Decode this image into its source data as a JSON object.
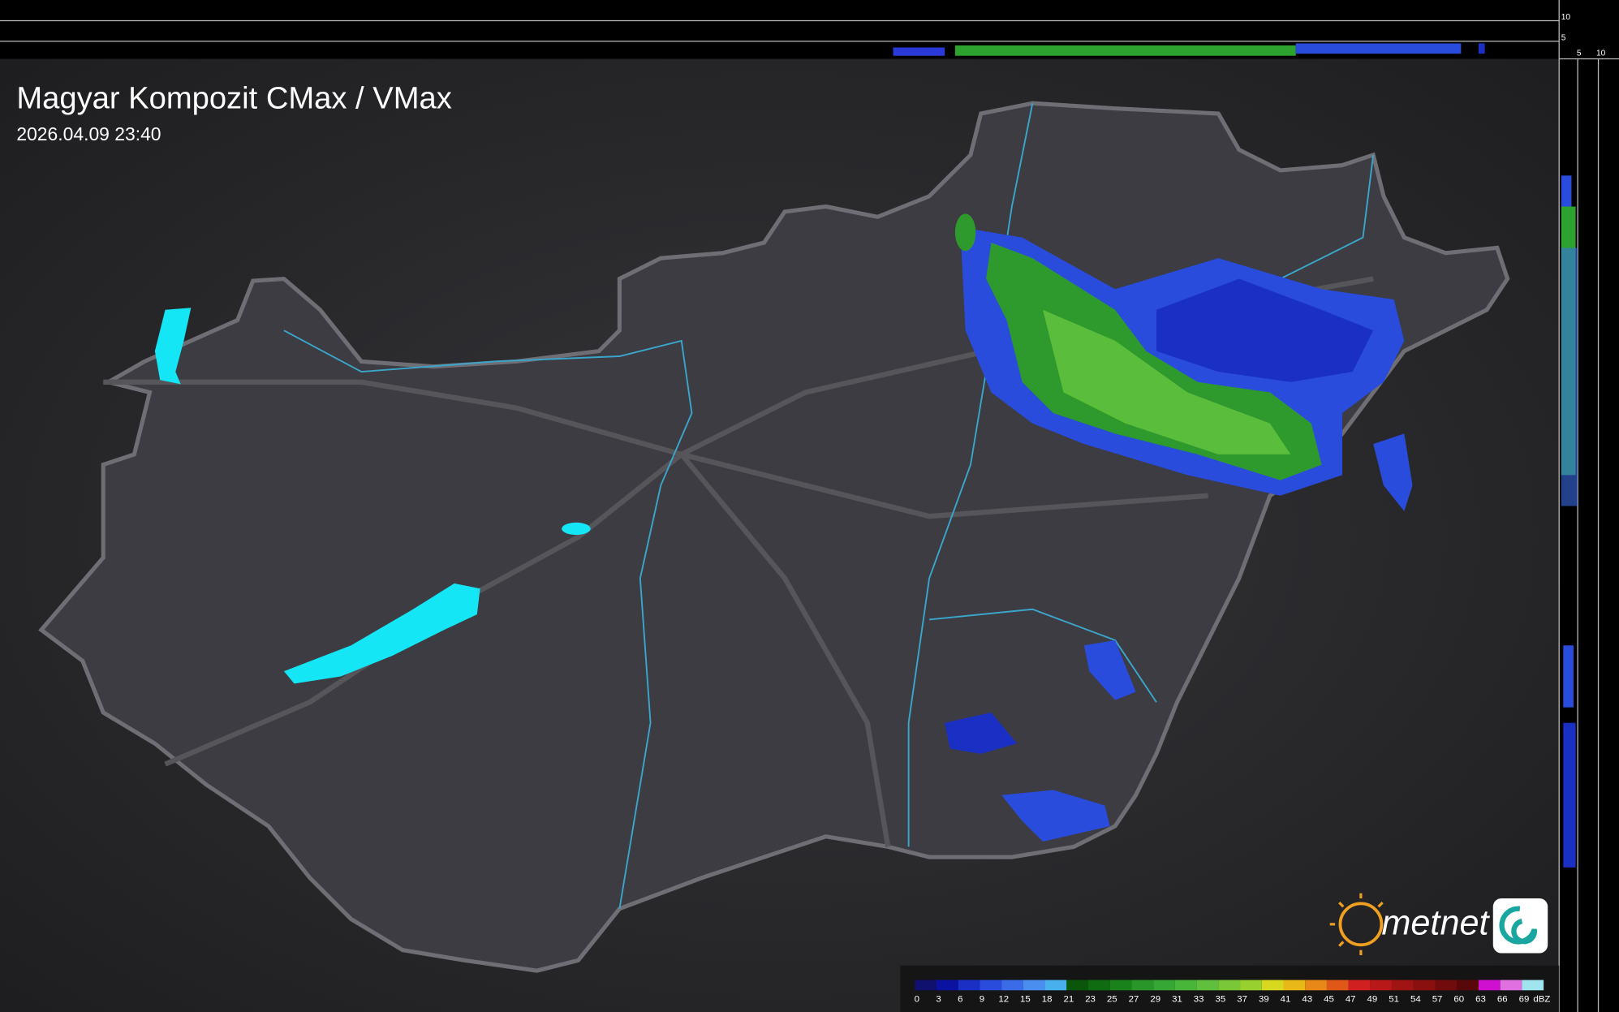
{
  "header": {
    "title": "Magyar Kompozit CMax / VMax",
    "timestamp": "2026.04.09 23:40"
  },
  "legend": {
    "ticks": [
      0,
      3,
      6,
      9,
      12,
      15,
      18,
      21,
      23,
      25,
      27,
      29,
      31,
      33,
      35,
      37,
      39,
      41,
      43,
      45,
      47,
      49,
      51,
      54,
      57,
      60,
      63,
      66,
      69
    ],
    "unit": "dBZ",
    "colors": [
      "#10106e",
      "#0c12a0",
      "#1a30c4",
      "#2a4cdc",
      "#3a6ce8",
      "#4a8ef0",
      "#48b0ec",
      "#0a560a",
      "#106c10",
      "#1a821a",
      "#289628",
      "#36a634",
      "#48b638",
      "#60c03e",
      "#7ac838",
      "#98d030",
      "#d8d820",
      "#e8b818",
      "#e88818",
      "#e05818",
      "#d02020",
      "#b81818",
      "#a01414",
      "#8a1010",
      "#700c0c",
      "#580808",
      "#d010d0",
      "#e070e0",
      "#a0e4f0"
    ]
  },
  "profile_axes": {
    "top": [
      "10",
      "5"
    ],
    "right": [
      "5",
      "10"
    ]
  },
  "logo": "metnet"
}
